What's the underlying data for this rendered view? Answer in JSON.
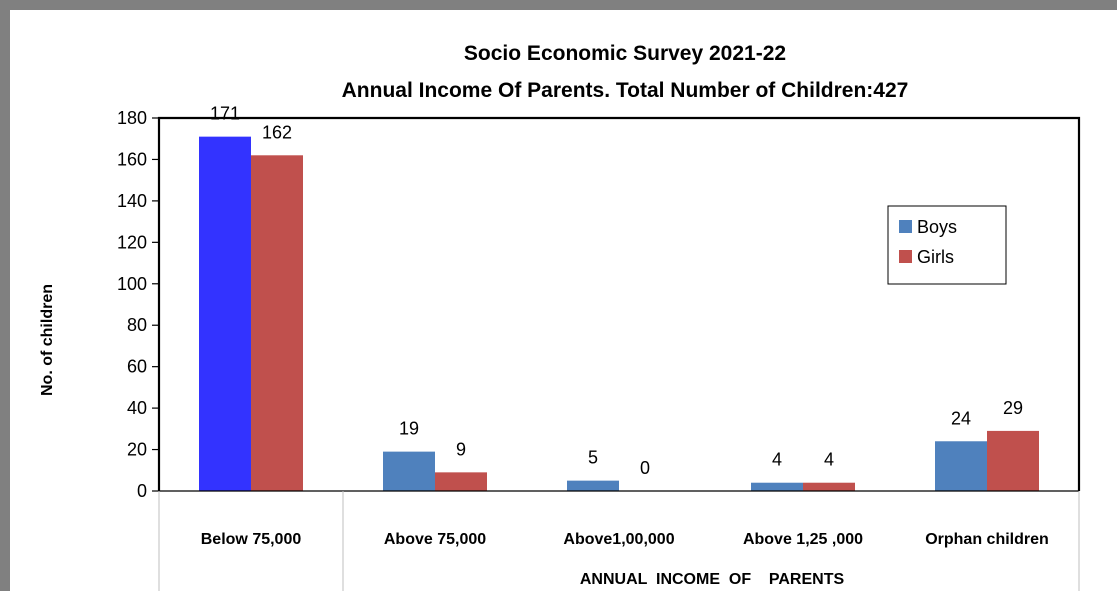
{
  "chart_data": {
    "type": "bar",
    "title_lines": [
      "Socio Economic Survey 2021-22",
      "Annual  Income Of  Parents. Total  Number of Children:427"
    ],
    "categories": [
      "Below 75,000",
      "Above 75,000",
      "Above1,00,000",
      "Above 1,25 ,000",
      "Orphan children"
    ],
    "series": [
      {
        "name": "Boys",
        "values": [
          171,
          19,
          5,
          4,
          24
        ],
        "color": "#4f81bd"
      },
      {
        "name": "Girls",
        "values": [
          162,
          9,
          0,
          4,
          29
        ],
        "color": "#c0504d"
      }
    ],
    "highlight": {
      "series": 0,
      "category": 0,
      "color": "#3333ff"
    },
    "xlabel": "ANNUAL  INCOME  OF    PARENTS",
    "ylabel": "No. of children",
    "ylim": [
      0,
      180
    ],
    "yticks": [
      "0",
      "20",
      "40",
      "60",
      "80",
      "100",
      "120",
      "140",
      "160",
      "180"
    ],
    "grid": false,
    "legend_position": "right"
  }
}
